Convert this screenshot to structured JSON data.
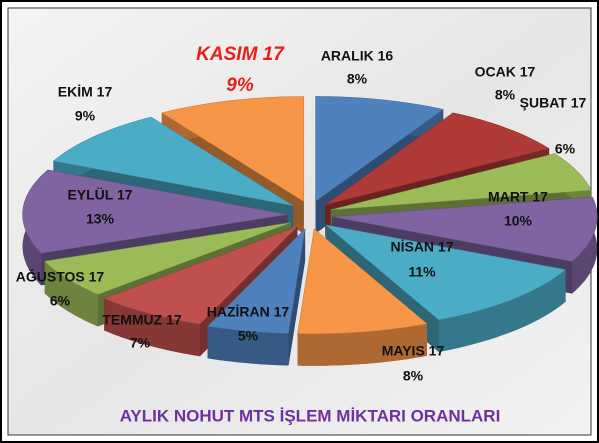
{
  "chart_data": {
    "type": "pie3d",
    "title": "AYLIK NOHUT MTS İŞLEM MİKTARI ORANLARI",
    "categories": [
      "ARALIK 16",
      "OCAK 17",
      "ŞUBAT 17",
      "MART 17",
      "NİSAN 17",
      "MAYIS 17",
      "HAZİRAN 17",
      "TEMMUZ 17",
      "AĞUSTOS 17",
      "EYLÜL 17",
      "EKİM 17",
      "KASIM 17"
    ],
    "values": [
      8,
      8,
      6,
      10,
      11,
      8,
      5,
      7,
      6,
      13,
      9,
      9
    ],
    "value_labels": [
      "8%",
      "8%",
      "6%",
      "10%",
      "11%",
      "8%",
      "5%",
      "7%",
      "6%",
      "13%",
      "9%",
      "9%"
    ],
    "colors": [
      "#4f81bd",
      "#b03a37",
      "#9bbb59",
      "#8064a2",
      "#4bacc6",
      "#f79646",
      "#4f81bd",
      "#c0504d",
      "#9bbb59",
      "#8064a2",
      "#4bacc6",
      "#f79646"
    ]
  }
}
